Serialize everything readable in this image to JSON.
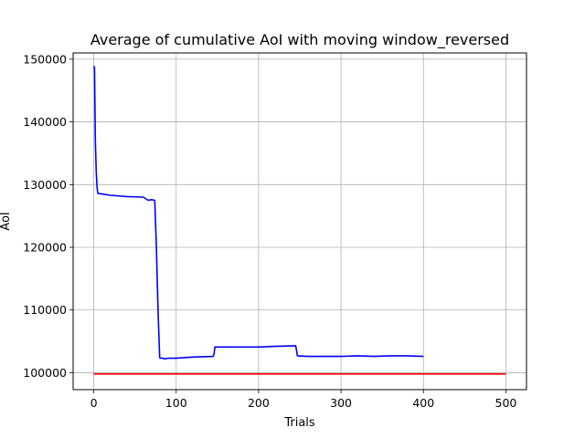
{
  "chart_data": {
    "type": "line",
    "title": "Average of cumulative AoI with moving window_reversed",
    "xlabel": "Trials",
    "ylabel": "AoI",
    "xlim": [
      -25,
      525
    ],
    "ylim": [
      97300,
      151000
    ],
    "xticks": [
      0,
      100,
      200,
      300,
      400,
      500
    ],
    "yticks": [
      100000,
      110000,
      120000,
      130000,
      140000,
      150000
    ],
    "grid": true,
    "series": [
      {
        "color": "#0000ff",
        "x": [
          0,
          1,
          2,
          3,
          4,
          5,
          10,
          20,
          40,
          60,
          66,
          70,
          74,
          76,
          78,
          80,
          82,
          84,
          86,
          90,
          100,
          120,
          145,
          146,
          147,
          160,
          180,
          200,
          220,
          245,
          246,
          247,
          260,
          280,
          300,
          320,
          340,
          360,
          380,
          400
        ],
        "y": [
          148900,
          148700,
          137000,
          132000,
          129500,
          128600,
          128500,
          128300,
          128100,
          128000,
          127500,
          127600,
          127500,
          120000,
          110000,
          102400,
          102300,
          102300,
          102200,
          102300,
          102300,
          102500,
          102600,
          103000,
          104100,
          104100,
          104100,
          104100,
          104200,
          104300,
          103600,
          102700,
          102600,
          102600,
          102600,
          102700,
          102600,
          102700,
          102700,
          102600
        ]
      },
      {
        "color": "#ff0000",
        "x": [
          0,
          500
        ],
        "y": [
          99800,
          99800
        ]
      }
    ]
  }
}
